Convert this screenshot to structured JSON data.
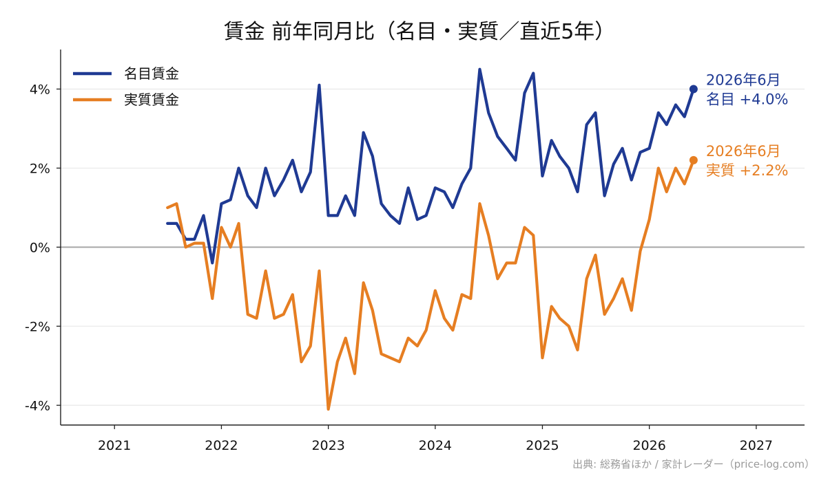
{
  "chart_data": {
    "type": "line",
    "title": "賃金 前年同月比（名目・実質／直近5年）",
    "ylim": [
      -4.5,
      5.0
    ],
    "xlim": [
      "2020-07-01",
      "2027-06-15"
    ],
    "x_tick_labels": [
      "2021",
      "2022",
      "2023",
      "2024",
      "2025",
      "2026",
      "2027"
    ],
    "y_tick_labels": [
      "4%",
      "2%",
      "0%",
      "-2%",
      "-4%"
    ],
    "y_ticks": [
      4,
      2,
      0,
      -2,
      -4
    ],
    "grid": "horizontal",
    "zero_line": true,
    "legend_position": "top-left",
    "x": [
      "2021-07",
      "2021-08",
      "2021-09",
      "2021-10",
      "2021-11",
      "2021-12",
      "2022-01",
      "2022-02",
      "2022-03",
      "2022-04",
      "2022-05",
      "2022-06",
      "2022-07",
      "2022-08",
      "2022-09",
      "2022-10",
      "2022-11",
      "2022-12",
      "2023-01",
      "2023-02",
      "2023-03",
      "2023-04",
      "2023-05",
      "2023-06",
      "2023-07",
      "2023-08",
      "2023-09",
      "2023-10",
      "2023-11",
      "2023-12",
      "2024-01",
      "2024-02",
      "2024-03",
      "2024-04",
      "2024-05",
      "2024-06",
      "2024-07",
      "2024-08",
      "2024-09",
      "2024-10",
      "2024-11",
      "2024-12",
      "2025-01",
      "2025-02",
      "2025-03",
      "2025-04",
      "2025-05",
      "2025-06",
      "2025-07",
      "2025-08",
      "2025-09",
      "2025-10",
      "2025-11",
      "2025-12",
      "2026-01",
      "2026-02",
      "2026-03",
      "2026-04",
      "2026-05",
      "2026-06"
    ],
    "series": [
      {
        "name": "名目賃金",
        "color": "#1f3a93",
        "values": [
          0.6,
          0.6,
          0.2,
          0.2,
          0.8,
          -0.4,
          1.1,
          1.2,
          2.0,
          1.3,
          1.0,
          2.0,
          1.3,
          1.7,
          2.2,
          1.4,
          1.9,
          4.1,
          0.8,
          0.8,
          1.3,
          0.8,
          2.9,
          2.3,
          1.1,
          0.8,
          0.6,
          1.5,
          0.7,
          0.8,
          1.5,
          1.4,
          1.0,
          1.6,
          2.0,
          4.5,
          3.4,
          2.8,
          2.5,
          2.2,
          3.9,
          4.4,
          1.8,
          2.7,
          2.3,
          2.0,
          1.4,
          3.1,
          3.4,
          1.3,
          2.1,
          2.5,
          1.7,
          2.4,
          2.5,
          3.4,
          3.1,
          3.6,
          3.3,
          4.0
        ]
      },
      {
        "name": "実質賃金",
        "color": "#e67e22",
        "values": [
          1.0,
          1.1,
          0.0,
          0.1,
          0.1,
          -1.3,
          0.5,
          0.0,
          0.6,
          -1.7,
          -1.8,
          -0.6,
          -1.8,
          -1.7,
          -1.2,
          -2.9,
          -2.5,
          -0.6,
          -4.1,
          -2.9,
          -2.3,
          -3.2,
          -0.9,
          -1.6,
          -2.7,
          -2.8,
          -2.9,
          -2.3,
          -2.5,
          -2.1,
          -1.1,
          -1.8,
          -2.1,
          -1.2,
          -1.3,
          1.1,
          0.3,
          -0.8,
          -0.4,
          -0.4,
          0.5,
          0.3,
          -2.8,
          -1.5,
          -1.8,
          -2.0,
          -2.6,
          -0.8,
          -0.2,
          -1.7,
          -1.3,
          -0.8,
          -1.6,
          -0.1,
          0.7,
          2.0,
          1.4,
          2.0,
          1.6,
          2.2
        ]
      }
    ],
    "annotations": [
      {
        "series": 0,
        "line1": "2026年6月",
        "line2": "名目 +4.0%"
      },
      {
        "series": 1,
        "line1": "2026年6月",
        "line2": "実質 +2.2%"
      }
    ]
  },
  "source": "出典: 総務省ほか / 家計レーダー（price-log.com）"
}
